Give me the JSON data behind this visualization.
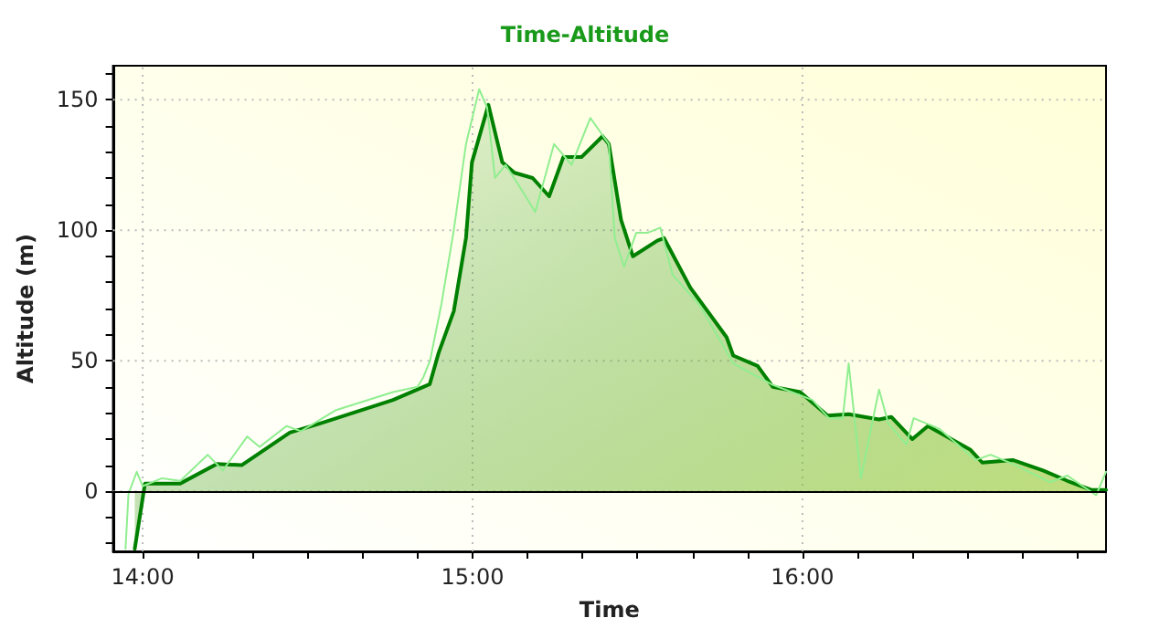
{
  "chart_data": {
    "type": "area",
    "title": "Time-Altitude",
    "xlabel": "Time",
    "ylabel": "Altitude (m)",
    "xlim": [
      13.91,
      16.92
    ],
    "xticks": [
      {
        "value": 14,
        "label": "14:00"
      },
      {
        "value": 14.1667,
        "label": null
      },
      {
        "value": 14.3333,
        "label": null
      },
      {
        "value": 14.5,
        "label": null
      },
      {
        "value": 14.6667,
        "label": null
      },
      {
        "value": 14.8333,
        "label": null
      },
      {
        "value": 15,
        "label": "15:00"
      },
      {
        "value": 15.1667,
        "label": null
      },
      {
        "value": 15.3333,
        "label": null
      },
      {
        "value": 15.5,
        "label": null
      },
      {
        "value": 15.6667,
        "label": null
      },
      {
        "value": 15.8333,
        "label": null
      },
      {
        "value": 16,
        "label": "16:00"
      },
      {
        "value": 16.1667,
        "label": null
      },
      {
        "value": 16.3333,
        "label": null
      },
      {
        "value": 16.5,
        "label": null
      },
      {
        "value": 16.6667,
        "label": null
      },
      {
        "value": 16.8333,
        "label": null
      }
    ],
    "ylim": [
      -23,
      163
    ],
    "yticks": [
      {
        "value": -20,
        "label": null
      },
      {
        "value": -10,
        "label": null
      },
      0,
      {
        "value": 10,
        "label": null
      },
      {
        "value": 20,
        "label": null
      },
      {
        "value": 30,
        "label": null
      },
      {
        "value": 40,
        "label": null
      },
      50,
      {
        "value": 60,
        "label": null
      },
      {
        "value": 70,
        "label": null
      },
      {
        "value": 80,
        "label": null
      },
      {
        "value": 90,
        "label": null
      },
      100,
      {
        "value": 110,
        "label": null
      },
      {
        "value": 120,
        "label": null
      },
      {
        "value": 130,
        "label": null
      },
      {
        "value": 140,
        "label": null
      },
      150,
      {
        "value": 160,
        "label": null
      }
    ],
    "grid": true,
    "line_style": "solid",
    "marker": "none",
    "ref_lines": [
      {
        "axis": "y",
        "value": 0,
        "label": null,
        "color": "#000000"
      }
    ],
    "series": [
      {
        "type": "line",
        "color": "#90ee90",
        "x": [
          13.948,
          13.957,
          13.982,
          14.0,
          14.059,
          14.114,
          14.197,
          14.243,
          14.317,
          14.354,
          14.436,
          14.48,
          14.584,
          14.759,
          14.833,
          14.85,
          14.871,
          14.906,
          14.943,
          14.98,
          15.02,
          15.044,
          15.068,
          15.1,
          15.136,
          15.19,
          15.247,
          15.3,
          15.357,
          15.413,
          15.431,
          15.459,
          15.496,
          15.53,
          15.569,
          15.606,
          15.69,
          15.79,
          15.906,
          16.03,
          16.08,
          16.122,
          16.14,
          16.177,
          16.232,
          16.26,
          16.315,
          16.337,
          16.414,
          16.525,
          16.57,
          16.637,
          16.75,
          16.803,
          16.89,
          16.92
        ],
        "values": [
          -22,
          -1,
          7.5,
          2,
          5,
          4,
          14,
          8,
          21,
          17,
          25,
          23,
          31,
          38,
          40,
          43.5,
          50,
          72,
          100,
          133,
          154,
          147,
          120,
          125,
          118,
          107,
          133,
          125,
          143,
          133,
          97,
          86,
          99,
          99,
          101,
          83,
          71,
          49,
          41,
          35,
          28,
          28,
          49,
          5,
          39,
          26,
          18,
          28,
          24,
          12,
          14,
          10.5,
          3.5,
          6,
          -1.5,
          7.5
        ]
      },
      {
        "color": "#008000",
        "x": [
          13.976,
          14.007,
          14.114,
          14.225,
          14.3,
          14.446,
          14.538,
          14.759,
          14.87,
          14.897,
          14.943,
          14.98,
          14.998,
          15.048,
          15.09,
          15.127,
          15.182,
          15.232,
          15.275,
          15.33,
          15.394,
          15.413,
          15.45,
          15.486,
          15.56,
          15.58,
          15.66,
          15.77,
          15.79,
          15.864,
          15.91,
          15.993,
          16.076,
          16.14,
          16.232,
          16.269,
          16.333,
          16.38,
          16.508,
          16.545,
          16.637,
          16.729,
          16.803,
          16.877,
          16.92
        ],
        "values": [
          -22,
          3,
          3,
          10.5,
          10,
          22.5,
          26,
          35,
          41,
          53,
          69,
          97,
          126,
          148,
          126,
          122,
          120,
          113,
          128,
          128,
          136,
          133,
          104,
          90,
          96,
          97,
          78,
          59,
          52,
          48,
          40,
          38,
          29,
          29.5,
          27.5,
          28.5,
          20,
          25,
          16,
          11,
          12,
          8,
          4,
          0.5,
          0.5
        ]
      }
    ]
  }
}
